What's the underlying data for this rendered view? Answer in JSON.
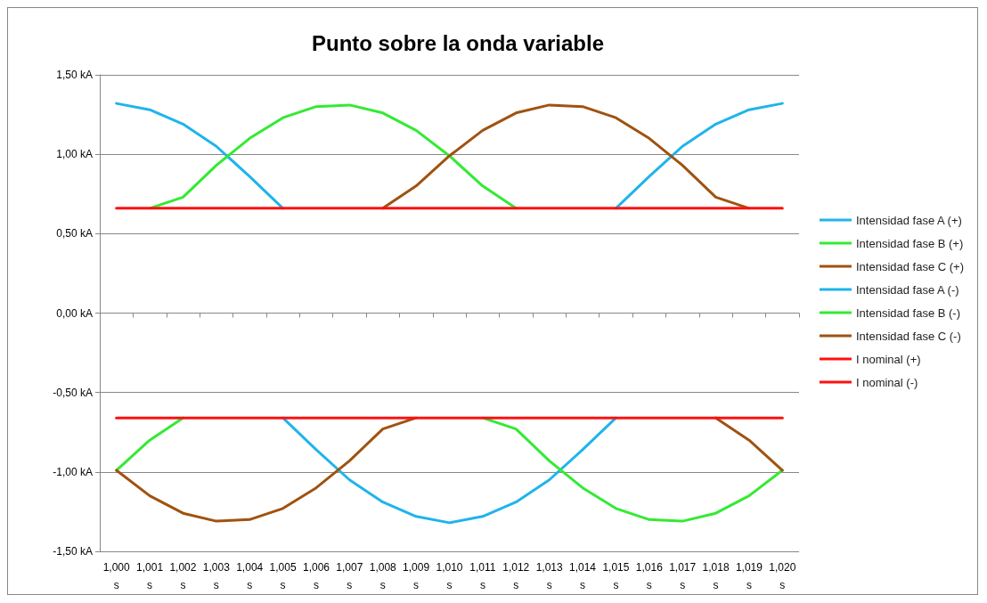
{
  "chart_data": {
    "type": "line",
    "title": "Punto sobre la onda variable",
    "categories": [
      "1,000 s",
      "1,001 s",
      "1,002 s",
      "1,003 s",
      "1,004 s",
      "1,005 s",
      "1,006 s",
      "1,007 s",
      "1,008 s",
      "1,009 s",
      "1,010 s",
      "1,011 s",
      "1,012 s",
      "1,013 s",
      "1,014 s",
      "1,015 s",
      "1,016 s",
      "1,017 s",
      "1,018 s",
      "1,019 s",
      "1,020 s"
    ],
    "series": [
      {
        "name": "Intensidad fase A (+)",
        "color": "#1fb4ec",
        "values": [
          1.32,
          1.28,
          1.19,
          1.05,
          0.86,
          0.66,
          null,
          null,
          null,
          null,
          null,
          null,
          null,
          null,
          null,
          0.66,
          0.86,
          1.05,
          1.19,
          1.28,
          1.32
        ]
      },
      {
        "name": "Intensidad fase B (+)",
        "color": "#33ea33",
        "values": [
          null,
          0.66,
          0.73,
          0.93,
          1.1,
          1.23,
          1.3,
          1.31,
          1.26,
          1.15,
          0.99,
          0.8,
          0.66,
          null,
          null,
          null,
          null,
          null,
          null,
          null,
          null
        ]
      },
      {
        "name": "Intensidad fase C (+)",
        "color": "#a0520f",
        "values": [
          null,
          null,
          null,
          null,
          null,
          null,
          null,
          null,
          0.66,
          0.8,
          0.99,
          1.15,
          1.26,
          1.31,
          1.3,
          1.23,
          1.1,
          0.93,
          0.73,
          0.66,
          null
        ]
      },
      {
        "name": "Intensidad fase A (-)",
        "color": "#1fb4ec",
        "values": [
          null,
          null,
          null,
          null,
          null,
          -0.66,
          -0.86,
          -1.05,
          -1.19,
          -1.28,
          -1.32,
          -1.28,
          -1.19,
          -1.05,
          -0.86,
          -0.66,
          null,
          null,
          null,
          null,
          null
        ]
      },
      {
        "name": "Intensidad fase B (-)",
        "color": "#33ea33",
        "values": [
          -0.99,
          -0.8,
          -0.66,
          null,
          null,
          null,
          null,
          null,
          null,
          null,
          null,
          -0.66,
          -0.73,
          -0.93,
          -1.1,
          -1.23,
          -1.3,
          -1.31,
          -1.26,
          -1.15,
          -0.99
        ]
      },
      {
        "name": "Intensidad fase C (-)",
        "color": "#a0520f",
        "values": [
          -0.99,
          -1.15,
          -1.26,
          -1.31,
          -1.3,
          -1.23,
          -1.1,
          -0.93,
          -0.73,
          -0.66,
          null,
          null,
          null,
          null,
          null,
          null,
          null,
          null,
          -0.66,
          -0.8,
          -0.99
        ]
      },
      {
        "name": "I nominal (+)",
        "color": "#ff1010",
        "values": [
          0.66,
          0.66,
          0.66,
          0.66,
          0.66,
          0.66,
          0.66,
          0.66,
          0.66,
          0.66,
          0.66,
          0.66,
          0.66,
          0.66,
          0.66,
          0.66,
          0.66,
          0.66,
          0.66,
          0.66,
          0.66
        ]
      },
      {
        "name": "I nominal (-)",
        "color": "#ff1010",
        "values": [
          -0.66,
          -0.66,
          -0.66,
          -0.66,
          -0.66,
          -0.66,
          -0.66,
          -0.66,
          -0.66,
          -0.66,
          -0.66,
          -0.66,
          -0.66,
          -0.66,
          -0.66,
          -0.66,
          -0.66,
          -0.66,
          -0.66,
          -0.66,
          -0.66
        ]
      }
    ],
    "ylim": [
      -1.5,
      1.5
    ],
    "yticks": [
      {
        "value": -1.5,
        "label": "-1,50 kA"
      },
      {
        "value": -1,
        "label": "-1,00 kA"
      },
      {
        "value": -0.5,
        "label": "-0,50 kA"
      },
      {
        "value": 0,
        "label": "0,00 kA"
      },
      {
        "value": 0.5,
        "label": "0,50 kA"
      },
      {
        "value": 1,
        "label": "1,00 kA"
      },
      {
        "value": 1.5,
        "label": "1,50 kA"
      }
    ],
    "grid": "y",
    "legend": "right",
    "marker": "none",
    "line_style": "solid"
  }
}
